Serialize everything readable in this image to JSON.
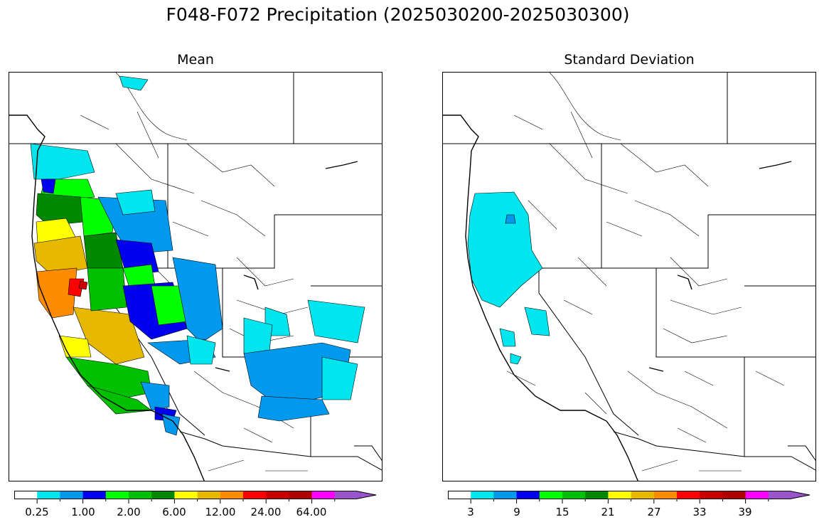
{
  "title": "F048-F072 Precipitation (2025030200-2025030300)",
  "panels": {
    "mean": {
      "title": "Mean",
      "colorbar_ticks": [
        "0.25",
        "1.00",
        "2.00",
        "6.00",
        "12.00",
        "24.00",
        "64.00"
      ]
    },
    "std": {
      "title": "Standard Deviation",
      "colorbar_ticks": [
        "3",
        "9",
        "15",
        "21",
        "27",
        "33",
        "39"
      ]
    }
  },
  "colorbar_colors": [
    "#ffffff",
    "#00e5ee",
    "#0099ee",
    "#0000ee",
    "#00ff00",
    "#00c000",
    "#008800",
    "#ffff00",
    "#e6b800",
    "#ff8c00",
    "#ff0000",
    "#cc0000",
    "#b00000",
    "#ff00ff",
    "#9955cc"
  ],
  "colors": {
    "outline": "#000000",
    "background": "#ffffff"
  }
}
